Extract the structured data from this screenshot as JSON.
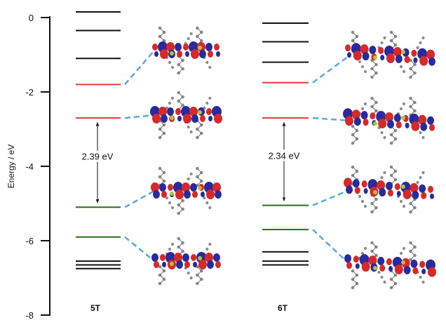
{
  "axis": {
    "title": "Energy / eV",
    "range": [
      -8,
      0
    ],
    "ticks": [
      {
        "value": 0,
        "label": "0"
      },
      {
        "value": -2,
        "label": "-2"
      },
      {
        "value": -4,
        "label": "-4"
      },
      {
        "value": -6,
        "label": "-6"
      },
      {
        "value": -8,
        "label": "-8"
      }
    ]
  },
  "colors": {
    "occupied": "#2e6b1f",
    "unoccupied": "#e8383d",
    "other": "#111111",
    "connector": "#5aa9dd",
    "orbital_lobe_positive": "#d62a2a",
    "orbital_lobe_negative": "#2a2a9c",
    "molecule_atoms": "#8c8c8c"
  },
  "panels": [
    {
      "label": "5T",
      "gap_label": "2.39 eV",
      "gap": {
        "from": -2.7,
        "to": -5.1
      },
      "levels": [
        {
          "energy": 0.15,
          "kind": "other"
        },
        {
          "energy": -0.35,
          "kind": "other"
        },
        {
          "energy": -1.1,
          "kind": "other"
        },
        {
          "energy": -1.8,
          "kind": "unoccupied"
        },
        {
          "energy": -2.7,
          "kind": "unoccupied"
        },
        {
          "energy": -5.1,
          "kind": "occupied"
        },
        {
          "energy": -5.9,
          "kind": "occupied"
        },
        {
          "energy": -6.55,
          "kind": "other"
        },
        {
          "energy": -6.65,
          "kind": "other"
        },
        {
          "energy": -6.75,
          "kind": "other"
        }
      ],
      "orbital_images": [
        {
          "linked_energy": -1.8,
          "icon": "lumo-plus-1-orbital-icon"
        },
        {
          "linked_energy": -2.7,
          "icon": "lumo-orbital-icon"
        },
        {
          "linked_energy": -5.1,
          "icon": "homo-orbital-icon"
        },
        {
          "linked_energy": -5.9,
          "icon": "homo-minus-1-orbital-icon"
        }
      ]
    },
    {
      "label": "6T",
      "gap_label": "2.34 eV",
      "gap": {
        "from": -2.7,
        "to": -5.05
      },
      "levels": [
        {
          "energy": -0.15,
          "kind": "other"
        },
        {
          "energy": -0.65,
          "kind": "other"
        },
        {
          "energy": -1.2,
          "kind": "other"
        },
        {
          "energy": -1.75,
          "kind": "unoccupied"
        },
        {
          "energy": -2.7,
          "kind": "unoccupied"
        },
        {
          "energy": -5.05,
          "kind": "occupied"
        },
        {
          "energy": -5.7,
          "kind": "occupied"
        },
        {
          "energy": -6.3,
          "kind": "other"
        },
        {
          "energy": -6.55,
          "kind": "other"
        },
        {
          "energy": -6.65,
          "kind": "other"
        }
      ],
      "orbital_images": [
        {
          "linked_energy": -1.75,
          "icon": "lumo-plus-1-orbital-icon"
        },
        {
          "linked_energy": -2.7,
          "icon": "lumo-orbital-icon"
        },
        {
          "linked_energy": -5.05,
          "icon": "homo-orbital-icon"
        },
        {
          "linked_energy": -5.7,
          "icon": "homo-minus-1-orbital-icon"
        }
      ]
    }
  ]
}
